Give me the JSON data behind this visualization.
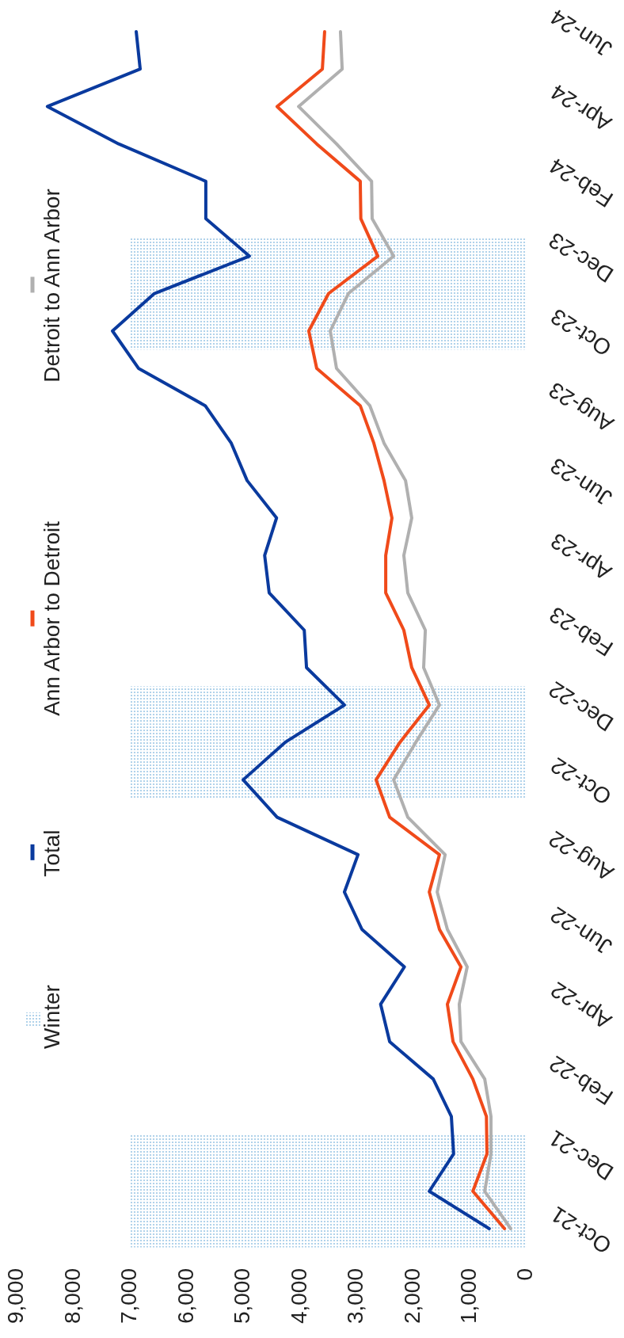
{
  "chart_data": {
    "type": "line",
    "orientation": "horizontal",
    "categories": [
      "Jun-24",
      null,
      "Apr-24",
      null,
      "Feb-24",
      null,
      "Dec-23",
      null,
      "Oct-23",
      null,
      "Aug-23",
      null,
      "Jun-23",
      null,
      "Apr-23",
      null,
      "Feb-23",
      null,
      "Dec-22",
      null,
      "Oct-22",
      null,
      "Aug-22",
      null,
      "Jun-22",
      null,
      "Apr-22",
      null,
      "Feb-22",
      null,
      "Dec-21",
      null,
      "Oct-21"
    ],
    "series": [
      {
        "name": "Winter",
        "type": "bar",
        "color": "#9ec8e6",
        "values": [
          null,
          null,
          null,
          null,
          null,
          null,
          7000,
          7000,
          7000,
          null,
          null,
          null,
          null,
          null,
          null,
          null,
          null,
          null,
          7000,
          7000,
          7000,
          null,
          null,
          null,
          null,
          null,
          null,
          null,
          null,
          null,
          7000,
          7000,
          7000
        ]
      },
      {
        "name": "Total",
        "color": "#0a3a9e",
        "values": [
          6900,
          6830,
          8470,
          7210,
          5670,
          5670,
          4900,
          6580,
          7320,
          6860,
          5680,
          5220,
          4940,
          4420,
          4630,
          4550,
          3930,
          3890,
          3220,
          4270,
          5010,
          4410,
          2980,
          3220,
          2910,
          2160,
          2580,
          2420,
          1650,
          1330,
          1290,
          1720,
          660
        ]
      },
      {
        "name": "Ann Arbor to Detroit",
        "color": "#f04a1a",
        "values": [
          3570,
          3610,
          4410,
          3710,
          2940,
          2930,
          2630,
          3500,
          3850,
          3710,
          2940,
          2700,
          2520,
          2380,
          2490,
          2490,
          2170,
          2030,
          1720,
          2240,
          2660,
          2420,
          1540,
          1720,
          1540,
          1160,
          1400,
          1300,
          950,
          710,
          700,
          950,
          390
        ]
      },
      {
        "name": "Detroit to Ann Arbor",
        "color": "#b0b0b0",
        "values": [
          3290,
          3260,
          4030,
          3360,
          2740,
          2730,
          2350,
          3150,
          3470,
          3360,
          2770,
          2520,
          2140,
          2030,
          2170,
          2100,
          1790,
          1820,
          1540,
          1960,
          2350,
          2100,
          1440,
          1580,
          1400,
          1050,
          1190,
          1160,
          740,
          630,
          630,
          740,
          280
        ]
      }
    ],
    "xlim": [
      9000,
      0
    ],
    "xticks": [
      {
        "value": 9000,
        "label": "9,000"
      },
      {
        "value": 8000,
        "label": "8,000"
      },
      {
        "value": 7000,
        "label": "7,000"
      },
      {
        "value": 6000,
        "label": "6,000"
      },
      {
        "value": 5000,
        "label": "5,000"
      },
      {
        "value": 4000,
        "label": "4,000"
      },
      {
        "value": 3000,
        "label": "3,000"
      },
      {
        "value": 2000,
        "label": "2,000"
      },
      {
        "value": 1000,
        "label": "1,000"
      },
      0
    ],
    "legend": "left",
    "grid": false,
    "marker": "none",
    "line_style": "solid"
  }
}
